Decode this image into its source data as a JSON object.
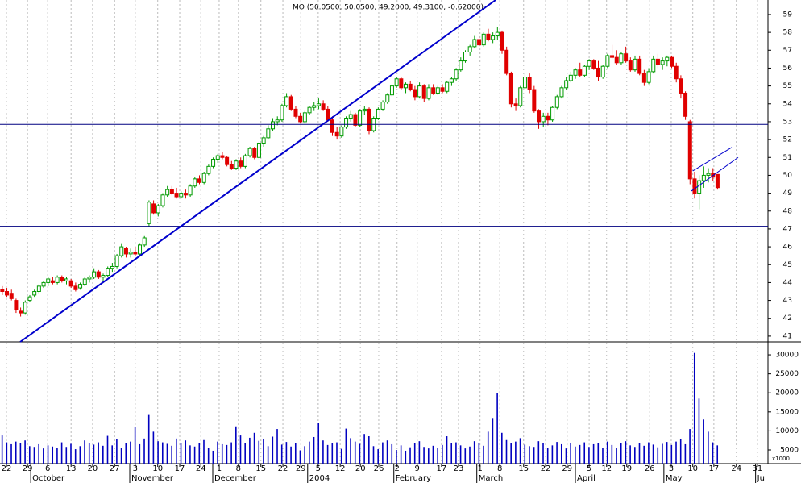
{
  "chart_data": {
    "type": "candlestick",
    "title": "MO (50.0500, 50.0500, 49.2000, 49.3100, -0.62000)",
    "up_color": "#009a00",
    "down_color": "#e00000",
    "grid": true,
    "xlim": [
      -0.5,
      167
    ],
    "ylim": [
      40.68,
      59.81
    ],
    "yticks": [
      41,
      42,
      43,
      44,
      45,
      46,
      47,
      48,
      49,
      50,
      51,
      52,
      53,
      54,
      55,
      56,
      57,
      58,
      59
    ],
    "xticks": [
      {
        "value": 0.9,
        "label": "22"
      },
      {
        "value": 5.5,
        "label": "29"
      },
      {
        "value": 9.9,
        "label": "6"
      },
      {
        "value": 15.0,
        "label": "13"
      },
      {
        "value": 19.7,
        "label": "20"
      },
      {
        "value": 24.5,
        "label": "27"
      },
      {
        "value": 29.0,
        "label": "3"
      },
      {
        "value": 33.9,
        "label": "10"
      },
      {
        "value": 38.7,
        "label": "17"
      },
      {
        "value": 43.3,
        "label": "24"
      },
      {
        "value": 47.3,
        "label": "1"
      },
      {
        "value": 51.5,
        "label": "8"
      },
      {
        "value": 56.4,
        "label": "15"
      },
      {
        "value": 61.2,
        "label": "22"
      },
      {
        "value": 65.1,
        "label": "29"
      },
      {
        "value": 68.9,
        "label": "5"
      },
      {
        "value": 73.7,
        "label": "12"
      },
      {
        "value": 78.1,
        "label": "20"
      },
      {
        "value": 82.1,
        "label": "26"
      },
      {
        "value": 86.1,
        "label": "2"
      },
      {
        "value": 90.5,
        "label": "9"
      },
      {
        "value": 95.8,
        "label": "17"
      },
      {
        "value": 99.5,
        "label": "23"
      },
      {
        "value": 104.2,
        "label": "1"
      },
      {
        "value": 108.5,
        "label": "8"
      },
      {
        "value": 113.7,
        "label": "15"
      },
      {
        "value": 118.5,
        "label": "22"
      },
      {
        "value": 123.2,
        "label": "29"
      },
      {
        "value": 128.0,
        "label": "5"
      },
      {
        "value": 131.8,
        "label": "12"
      },
      {
        "value": 136.2,
        "label": "19"
      },
      {
        "value": 141.2,
        "label": "26"
      },
      {
        "value": 145.9,
        "label": "3"
      },
      {
        "value": 150.6,
        "label": "10"
      },
      {
        "value": 155.2,
        "label": "17"
      },
      {
        "value": 160.1,
        "label": "24"
      },
      {
        "value": 164.7,
        "label": "31"
      }
    ],
    "month_ticks": [
      {
        "value": 6.2,
        "label": "October"
      },
      {
        "value": 27.8,
        "label": "November"
      },
      {
        "value": 45.9,
        "label": "December"
      },
      {
        "value": 66.6,
        "label": "2004"
      },
      {
        "value": 85.4,
        "label": "February"
      },
      {
        "value": 103.5,
        "label": "March"
      },
      {
        "value": 125.0,
        "label": "April"
      },
      {
        "value": 144.3,
        "label": "May"
      },
      {
        "value": 164.3,
        "label": "Ju"
      }
    ],
    "candles": [
      [
        43.6,
        43.8,
        43.3,
        43.5
      ],
      [
        43.5,
        43.7,
        43.2,
        43.3
      ],
      [
        43.4,
        43.6,
        43.0,
        43.1
      ],
      [
        43.0,
        43.1,
        42.3,
        42.5
      ],
      [
        42.4,
        42.6,
        42.1,
        42.3
      ],
      [
        42.3,
        43.0,
        42.2,
        42.9
      ],
      [
        43.0,
        43.3,
        42.9,
        43.2
      ],
      [
        43.3,
        43.6,
        43.2,
        43.5
      ],
      [
        43.5,
        43.9,
        43.4,
        43.8
      ],
      [
        43.8,
        44.1,
        43.7,
        44.0
      ],
      [
        44.0,
        44.3,
        43.8,
        44.2
      ],
      [
        44.1,
        44.3,
        43.9,
        44.0
      ],
      [
        44.0,
        44.4,
        43.9,
        44.3
      ],
      [
        44.3,
        44.4,
        44.0,
        44.1
      ],
      [
        44.1,
        44.3,
        43.9,
        44.2
      ],
      [
        44.1,
        44.2,
        43.7,
        43.8
      ],
      [
        43.8,
        44.0,
        43.5,
        43.6
      ],
      [
        43.7,
        44.0,
        43.6,
        43.9
      ],
      [
        43.9,
        44.3,
        43.8,
        44.2
      ],
      [
        44.2,
        44.4,
        44.0,
        44.3
      ],
      [
        44.3,
        44.8,
        44.2,
        44.6
      ],
      [
        44.6,
        44.7,
        44.2,
        44.3
      ],
      [
        44.3,
        44.5,
        44.0,
        44.4
      ],
      [
        44.4,
        44.9,
        44.3,
        44.8
      ],
      [
        44.8,
        45.1,
        44.6,
        44.9
      ],
      [
        44.9,
        45.6,
        44.8,
        45.5
      ],
      [
        45.5,
        46.2,
        45.4,
        46.0
      ],
      [
        45.9,
        46.0,
        45.4,
        45.6
      ],
      [
        45.6,
        45.9,
        45.4,
        45.7
      ],
      [
        45.7,
        46.0,
        45.5,
        45.6
      ],
      [
        45.6,
        46.2,
        45.5,
        46.1
      ],
      [
        46.1,
        46.6,
        46.0,
        46.5
      ],
      [
        47.3,
        48.6,
        47.1,
        48.5
      ],
      [
        48.4,
        48.6,
        47.8,
        47.9
      ],
      [
        47.9,
        48.4,
        47.7,
        48.3
      ],
      [
        48.3,
        49.0,
        48.2,
        48.9
      ],
      [
        48.9,
        49.4,
        48.8,
        49.2
      ],
      [
        49.2,
        49.4,
        48.9,
        49.0
      ],
      [
        49.0,
        49.3,
        48.7,
        48.8
      ],
      [
        48.8,
        49.1,
        48.7,
        49.0
      ],
      [
        49.0,
        49.2,
        48.7,
        48.9
      ],
      [
        48.9,
        49.5,
        48.8,
        49.4
      ],
      [
        49.4,
        49.9,
        49.3,
        49.8
      ],
      [
        49.8,
        50.0,
        49.5,
        49.6
      ],
      [
        49.6,
        50.2,
        49.5,
        50.1
      ],
      [
        50.1,
        50.6,
        50.0,
        50.5
      ],
      [
        50.5,
        51.0,
        50.4,
        50.9
      ],
      [
        50.9,
        51.2,
        50.7,
        51.1
      ],
      [
        51.1,
        51.3,
        50.9,
        51.0
      ],
      [
        51.0,
        51.1,
        50.5,
        50.6
      ],
      [
        50.6,
        50.8,
        50.3,
        50.4
      ],
      [
        50.4,
        50.9,
        50.3,
        50.8
      ],
      [
        50.8,
        51.0,
        50.4,
        50.5
      ],
      [
        50.5,
        51.2,
        50.4,
        51.1
      ],
      [
        51.1,
        51.6,
        51.0,
        51.5
      ],
      [
        51.5,
        51.6,
        50.9,
        51.0
      ],
      [
        51.0,
        51.9,
        50.9,
        51.8
      ],
      [
        51.8,
        52.2,
        51.6,
        52.1
      ],
      [
        52.1,
        52.8,
        52.0,
        52.6
      ],
      [
        52.6,
        53.2,
        52.5,
        53.0
      ],
      [
        53.0,
        53.3,
        52.8,
        53.1
      ],
      [
        53.1,
        54.0,
        53.0,
        53.9
      ],
      [
        53.9,
        54.6,
        53.8,
        54.4
      ],
      [
        54.4,
        54.5,
        53.6,
        53.7
      ],
      [
        53.7,
        53.9,
        53.2,
        53.3
      ],
      [
        53.3,
        53.5,
        52.9,
        53.0
      ],
      [
        53.0,
        53.6,
        52.9,
        53.5
      ],
      [
        53.5,
        53.9,
        53.4,
        53.8
      ],
      [
        53.8,
        54.1,
        53.6,
        53.9
      ],
      [
        53.9,
        54.3,
        53.7,
        54.0
      ],
      [
        54.0,
        54.2,
        53.6,
        53.7
      ],
      [
        53.7,
        53.9,
        53.0,
        53.1
      ],
      [
        53.1,
        53.3,
        52.2,
        52.4
      ],
      [
        52.4,
        52.7,
        52.0,
        52.2
      ],
      [
        52.2,
        52.8,
        52.1,
        52.7
      ],
      [
        52.7,
        53.3,
        52.6,
        53.2
      ],
      [
        53.2,
        53.6,
        53.0,
        53.4
      ],
      [
        53.4,
        53.5,
        52.7,
        52.8
      ],
      [
        52.8,
        53.7,
        52.7,
        53.6
      ],
      [
        53.6,
        53.9,
        53.4,
        53.7
      ],
      [
        53.7,
        53.8,
        52.3,
        52.5
      ],
      [
        52.5,
        53.3,
        52.4,
        53.2
      ],
      [
        53.2,
        53.8,
        53.1,
        53.7
      ],
      [
        53.7,
        54.2,
        53.6,
        54.1
      ],
      [
        54.1,
        54.6,
        54.0,
        54.5
      ],
      [
        54.5,
        55.1,
        54.4,
        55.0
      ],
      [
        55.0,
        55.5,
        54.9,
        55.4
      ],
      [
        55.4,
        55.5,
        54.8,
        54.9
      ],
      [
        54.9,
        55.2,
        54.6,
        55.1
      ],
      [
        55.1,
        55.3,
        54.7,
        54.8
      ],
      [
        54.8,
        55.0,
        54.2,
        54.4
      ],
      [
        54.4,
        55.2,
        54.3,
        55.0
      ],
      [
        55.0,
        55.1,
        54.1,
        54.3
      ],
      [
        54.3,
        55.1,
        54.2,
        54.9
      ],
      [
        54.9,
        55.1,
        54.5,
        54.6
      ],
      [
        54.6,
        55.0,
        54.5,
        54.9
      ],
      [
        54.9,
        55.1,
        54.6,
        54.7
      ],
      [
        54.7,
        55.3,
        54.6,
        55.2
      ],
      [
        55.2,
        55.5,
        55.0,
        55.4
      ],
      [
        55.4,
        56.0,
        55.3,
        55.9
      ],
      [
        55.9,
        56.6,
        55.8,
        56.4
      ],
      [
        56.4,
        57.0,
        56.3,
        56.9
      ],
      [
        56.9,
        57.3,
        56.7,
        57.2
      ],
      [
        57.2,
        57.8,
        57.1,
        57.6
      ],
      [
        57.6,
        57.8,
        57.2,
        57.3
      ],
      [
        57.3,
        58.0,
        57.2,
        57.9
      ],
      [
        57.9,
        58.2,
        57.5,
        57.6
      ],
      [
        57.6,
        58.0,
        57.4,
        57.8
      ],
      [
        57.8,
        58.3,
        57.6,
        58.0
      ],
      [
        58.0,
        58.1,
        56.8,
        57.0
      ],
      [
        57.0,
        57.2,
        55.6,
        55.7
      ],
      [
        55.7,
        55.8,
        53.8,
        54.0
      ],
      [
        54.0,
        54.3,
        53.6,
        53.9
      ],
      [
        53.9,
        55.0,
        53.8,
        54.9
      ],
      [
        54.9,
        55.7,
        54.8,
        55.5
      ],
      [
        55.5,
        55.7,
        54.6,
        54.8
      ],
      [
        54.8,
        55.0,
        53.5,
        53.6
      ],
      [
        53.6,
        53.7,
        52.6,
        53.0
      ],
      [
        53.0,
        53.5,
        52.7,
        53.3
      ],
      [
        53.3,
        53.5,
        52.8,
        53.1
      ],
      [
        53.1,
        53.9,
        53.0,
        53.8
      ],
      [
        53.8,
        54.5,
        53.7,
        54.4
      ],
      [
        54.4,
        55.0,
        54.3,
        54.9
      ],
      [
        54.9,
        55.5,
        54.8,
        55.3
      ],
      [
        55.3,
        55.8,
        55.2,
        55.6
      ],
      [
        55.6,
        56.0,
        55.4,
        55.9
      ],
      [
        55.9,
        56.3,
        55.5,
        55.6
      ],
      [
        55.6,
        56.2,
        55.5,
        56.1
      ],
      [
        56.1,
        56.5,
        55.9,
        56.4
      ],
      [
        56.4,
        56.5,
        55.9,
        56.0
      ],
      [
        56.0,
        56.4,
        55.3,
        55.5
      ],
      [
        55.5,
        56.2,
        55.4,
        56.1
      ],
      [
        56.1,
        56.8,
        56.0,
        56.7
      ],
      [
        56.7,
        57.3,
        56.5,
        56.6
      ],
      [
        56.6,
        57.0,
        56.2,
        56.3
      ],
      [
        56.3,
        56.9,
        56.2,
        56.8
      ],
      [
        56.8,
        57.2,
        56.3,
        56.4
      ],
      [
        56.4,
        56.6,
        55.8,
        55.9
      ],
      [
        55.9,
        56.7,
        55.8,
        56.5
      ],
      [
        56.5,
        56.7,
        55.6,
        55.7
      ],
      [
        55.7,
        55.9,
        55.0,
        55.2
      ],
      [
        55.2,
        56.0,
        55.1,
        55.8
      ],
      [
        55.8,
        56.7,
        55.7,
        56.5
      ],
      [
        56.5,
        56.8,
        56.0,
        56.2
      ],
      [
        56.2,
        56.6,
        55.9,
        56.4
      ],
      [
        56.4,
        56.7,
        56.1,
        56.6
      ],
      [
        56.6,
        56.7,
        56.0,
        56.1
      ],
      [
        56.1,
        56.3,
        55.2,
        55.4
      ],
      [
        55.4,
        55.6,
        54.3,
        54.6
      ],
      [
        54.6,
        54.7,
        53.1,
        53.3
      ],
      [
        53.0,
        53.1,
        49.5,
        49.8
      ],
      [
        49.8,
        50.2,
        48.7,
        49.0
      ],
      [
        49.0,
        50.0,
        48.1,
        49.7
      ],
      [
        49.7,
        50.5,
        49.3,
        50.0
      ],
      [
        50.0,
        50.4,
        49.6,
        50.1
      ],
      [
        50.1,
        50.4,
        49.7,
        49.9
      ],
      [
        50.05,
        50.05,
        49.2,
        49.31
      ]
    ],
    "lines": [
      {
        "x": [
          -0.5,
          167
        ],
        "y": [
          52.85,
          52.85
        ],
        "color": "#000080",
        "width": 1
      },
      {
        "x": [
          -0.5,
          167
        ],
        "y": [
          47.15,
          47.15
        ],
        "color": "#000080",
        "width": 1
      },
      {
        "x": [
          3.9,
          107.6
        ],
        "y": [
          40.68,
          59.81
        ],
        "color": "#0000cc",
        "width": 2
      },
      {
        "x": [
          150.6,
          159.1
        ],
        "y": [
          50.25,
          51.56
        ],
        "color": "#0000cc",
        "width": 1
      },
      {
        "x": [
          150.3,
          160.5
        ],
        "y": [
          49.12,
          51.0
        ],
        "color": "#0000cc",
        "width": 1
      }
    ],
    "volume": {
      "color": "#0000c0",
      "unit_label": "x1000",
      "ylim": [
        1400,
        33400
      ],
      "yticks": [
        5000,
        10000,
        15000,
        20000,
        25000,
        30000
      ],
      "values": [
        8800,
        7000,
        6500,
        7200,
        6800,
        7500,
        6000,
        5800,
        6500,
        5400,
        6200,
        5900,
        5500,
        7000,
        5800,
        6600,
        5200,
        6000,
        7500,
        6900,
        6400,
        7000,
        6100,
        8700,
        6200,
        7800,
        5500,
        6900,
        7200,
        11000,
        6500,
        8000,
        14200,
        9800,
        7300,
        7000,
        6600,
        6100,
        8000,
        6800,
        7500,
        6200,
        5900,
        6800,
        7600,
        5600,
        4800,
        7200,
        6500,
        6300,
        7000,
        11200,
        8800,
        6900,
        8200,
        9500,
        7400,
        7800,
        6000,
        8500,
        10500,
        6400,
        7100,
        5900,
        6800,
        4900,
        6000,
        7200,
        8400,
        12100,
        7500,
        6300,
        6800,
        7000,
        5300,
        10600,
        8100,
        7200,
        6600,
        9200,
        8600,
        6000,
        5200,
        7000,
        7500,
        6500,
        5000,
        6200,
        4800,
        5700,
        6900,
        7300,
        5800,
        5400,
        6100,
        5500,
        6300,
        8600,
        6700,
        7000,
        6200,
        5400,
        5900,
        7300,
        6800,
        6100,
        9800,
        13200,
        20000,
        9500,
        7600,
        6800,
        7200,
        8100,
        6400,
        6000,
        5800,
        7300,
        6700,
        5600,
        6200,
        7100,
        6500,
        5400,
        6800,
        5900,
        6300,
        7000,
        5800,
        6500,
        6800,
        5600,
        7200,
        6300,
        5500,
        6700,
        7300,
        6200,
        5800,
        6900,
        6100,
        7000,
        6400,
        5700,
        6600,
        7100,
        6300,
        7200,
        7800,
        6500,
        10500,
        30500,
        18500,
        13000,
        9800,
        7000,
        6200
      ]
    }
  }
}
